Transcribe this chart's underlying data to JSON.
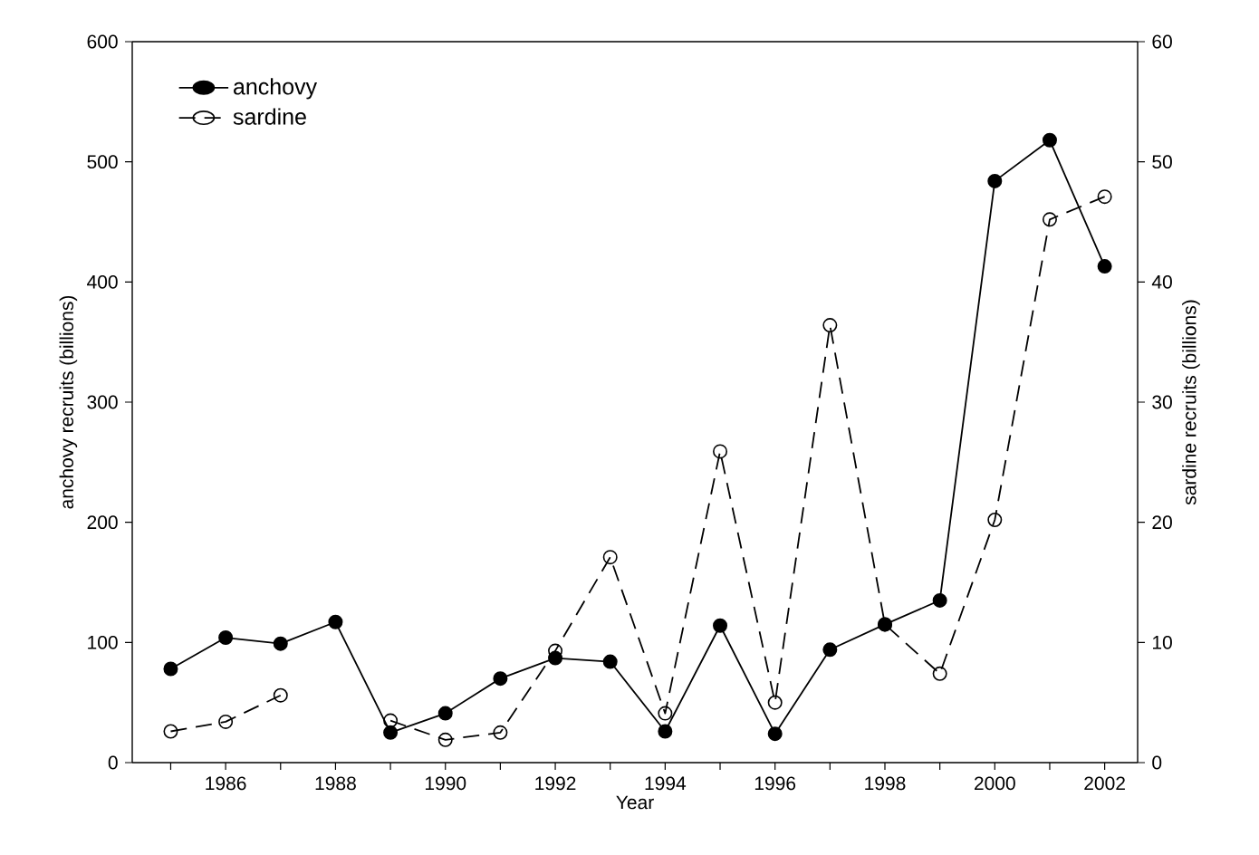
{
  "chart_data": {
    "type": "line",
    "xlabel": "Year",
    "ylabel": "anchovy recruits (billions)",
    "y2label": "sardine recruits (billions)",
    "x": [
      1985,
      1986,
      1987,
      1988,
      1989,
      1990,
      1991,
      1992,
      1993,
      1994,
      1995,
      1996,
      1997,
      1998,
      1999,
      2000,
      2001,
      2002
    ],
    "series": [
      {
        "name": "anchovy",
        "color": "#000000",
        "line_style": "solid",
        "values": [
          78,
          104,
          99,
          117,
          25,
          41,
          70,
          87,
          84,
          26,
          114,
          24,
          94,
          115,
          135,
          484,
          518,
          413
        ]
      },
      {
        "name": "sardine",
        "color": "#000000",
        "line_style": "dashed",
        "axis": "y2",
        "values": [
          2.6,
          3.4,
          5.6,
          null,
          3.5,
          1.9,
          2.5,
          9.3,
          17.1,
          4.1,
          25.9,
          5.0,
          36.4,
          11.5,
          7.4,
          20.2,
          45.2,
          47.1
        ]
      }
    ],
    "marker": "circle",
    "xlim": [
      1984.3,
      2002.6
    ],
    "xticks": [
      {
        "value": 1985,
        "label": null
      },
      1986,
      {
        "value": 1987,
        "label": null
      },
      1988,
      {
        "value": 1989,
        "label": null
      },
      1990,
      {
        "value": 1991,
        "label": null
      },
      1992,
      {
        "value": 1993,
        "label": null
      },
      1994,
      {
        "value": 1995,
        "label": null
      },
      1996,
      {
        "value": 1997,
        "label": null
      },
      1998,
      {
        "value": 1999,
        "label": null
      },
      2000,
      {
        "value": 2001,
        "label": null
      },
      2002
    ],
    "ylim": [
      0,
      600
    ],
    "yticks": [
      0,
      100,
      200,
      300,
      400,
      500,
      600
    ],
    "y2lim": [
      0,
      60
    ],
    "y2ticks": [
      0,
      10,
      20,
      30,
      40,
      50,
      60
    ],
    "legend": "top left",
    "grid": false
  }
}
